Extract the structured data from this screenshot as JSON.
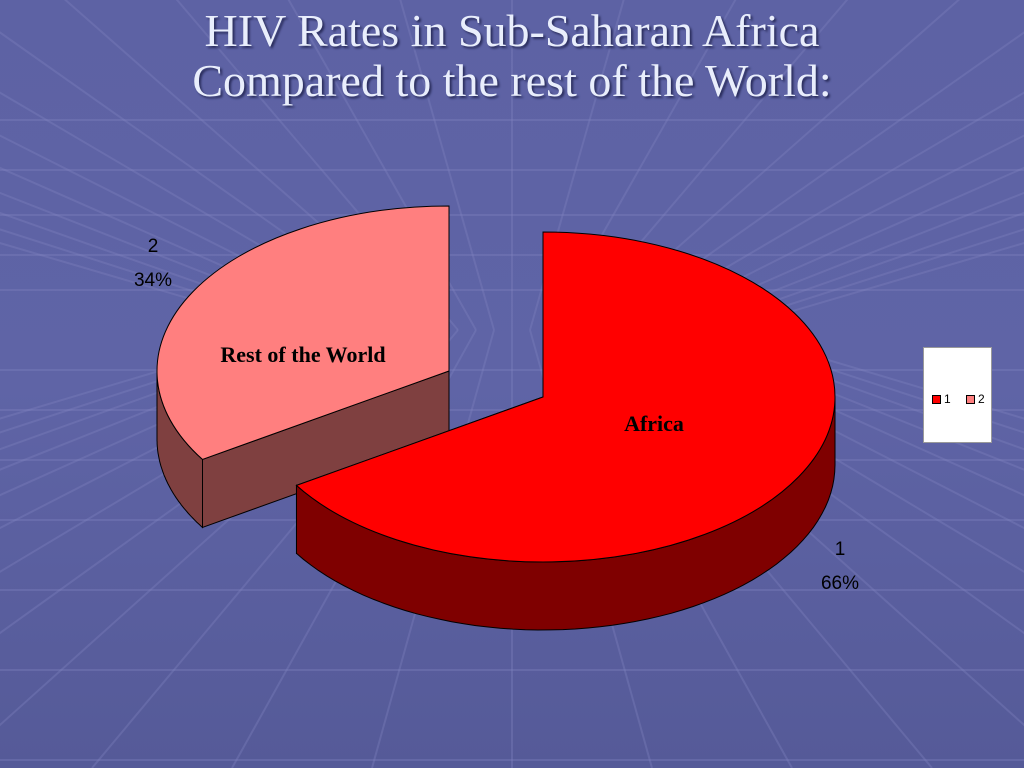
{
  "slide": {
    "title_line1": "HIV Rates in Sub-Saharan Africa",
    "title_line2": "Compared to the rest of the World:"
  },
  "chart_data": {
    "type": "pie",
    "style": "3d-exploded",
    "categories": [
      "1",
      "2"
    ],
    "values": [
      66,
      34
    ],
    "value_labels": [
      "66%",
      "34%"
    ],
    "slice_annotations": [
      "Africa",
      "Rest of the World"
    ],
    "colors": [
      "#ff0000",
      "#ff7f7f"
    ],
    "side_colors": [
      "#7f0000",
      "#7f4040"
    ],
    "legend": {
      "placement": "right",
      "entries": [
        {
          "label": "1",
          "color": "#ff0000"
        },
        {
          "label": "2",
          "color": "#ff7f7f"
        }
      ]
    }
  }
}
